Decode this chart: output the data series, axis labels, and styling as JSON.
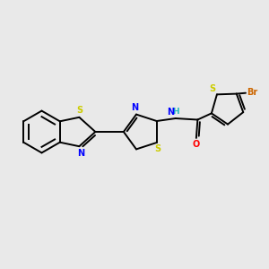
{
  "background_color": "#e9e9e9",
  "atom_colors": {
    "S": "#cccc00",
    "N": "#0000ff",
    "O": "#ff0000",
    "Br": "#cc6600",
    "C": "#000000",
    "H": "#22bbbb"
  },
  "figsize": [
    3.0,
    3.0
  ],
  "dpi": 100,
  "lw": 1.4,
  "fontsize": 7.0
}
